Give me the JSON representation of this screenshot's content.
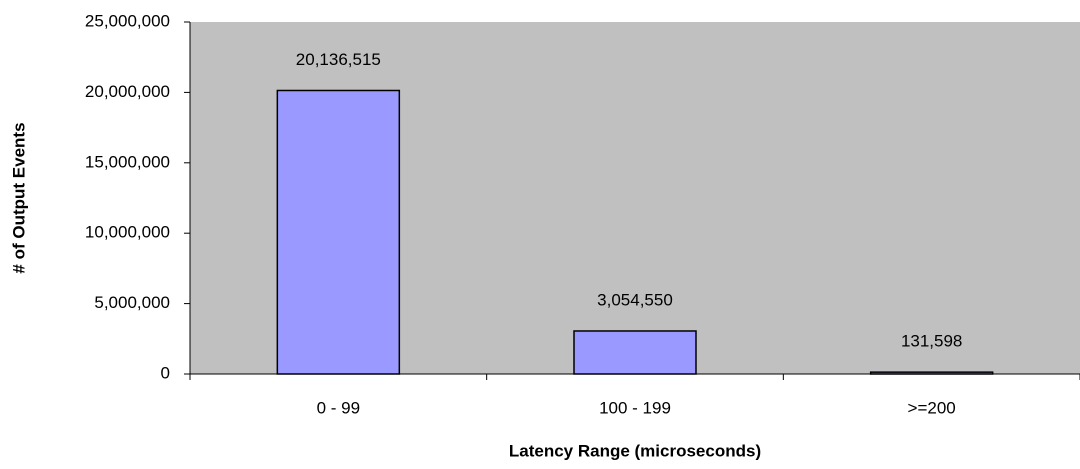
{
  "chart_data": {
    "type": "bar",
    "x_label": "Latency Range (microseconds)",
    "y_label": "# of Output Events",
    "categories": [
      "0 - 99",
      "100 - 199",
      ">=200"
    ],
    "values": [
      20136515,
      3054550,
      131598
    ],
    "value_labels": [
      "20,136,515",
      "3,054,550",
      "131,598"
    ],
    "color": "#9999ff",
    "plot_background": "#c0c0c0",
    "ylim": [
      0,
      25000000
    ],
    "yticks": [
      0,
      {
        "value": 5000000,
        "label": "5,000,000"
      },
      {
        "value": 10000000,
        "label": "10,000,000"
      },
      {
        "value": 15000000,
        "label": "15,000,000"
      },
      {
        "value": 20000000,
        "label": "20,000,000"
      },
      {
        "value": 25000000,
        "label": "25,000,000"
      }
    ],
    "grid": false
  }
}
